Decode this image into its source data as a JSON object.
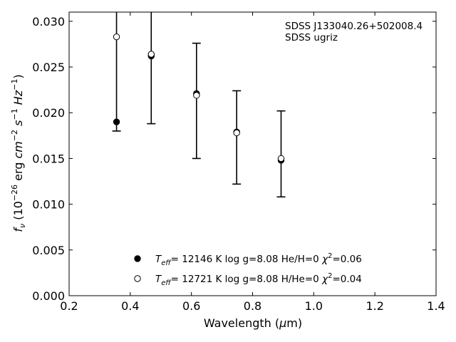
{
  "chart_data": {
    "type": "scatter",
    "xlim": [
      0.2,
      1.4
    ],
    "ylim": [
      0.0,
      0.031
    ],
    "x_ticks": [
      0.2,
      0.4,
      0.6,
      0.8,
      1.0,
      1.2,
      1.4
    ],
    "x_tick_labels": [
      "0.2",
      "0.4",
      "0.6",
      "0.8",
      "1.0",
      "1.2",
      "1.4"
    ],
    "y_ticks": [
      0.0,
      0.005,
      0.01,
      0.015,
      0.02,
      0.025,
      0.03
    ],
    "y_tick_labels": [
      "0.000",
      "0.005",
      "0.010",
      "0.015",
      "0.020",
      "0.025",
      "0.030"
    ],
    "xlabel": "Wavelength (μm)",
    "ylabel": "fν (10⁻²⁶ erg cm⁻² s⁻¹ Hz⁻¹)",
    "annotation": [
      "SDSS J133040.26+502008.4",
      "SDSS ugriz"
    ],
    "observed": {
      "x": [
        0.3551,
        0.4686,
        0.6166,
        0.748,
        0.8932
      ],
      "y": [
        0.0215,
        0.0303,
        0.0213,
        0.0173,
        0.0155
      ],
      "err": [
        0.0035,
        0.0115,
        0.0063,
        0.0051,
        0.0047
      ],
      "clip_top": [
        true,
        true,
        false,
        false,
        false
      ]
    },
    "series": [
      {
        "name": "Teff= 12146 K  log g=8.08  He/H=0  χ²=0.06",
        "marker": "filled",
        "x": [
          0.3551,
          0.4686,
          0.6166,
          0.748,
          0.8932
        ],
        "y": [
          0.019,
          0.0262,
          0.0221,
          0.0179,
          0.0148
        ]
      },
      {
        "name": "Teff= 12721 K  log g=8.08  H/He=0  χ²=0.04",
        "marker": "open",
        "x": [
          0.3551,
          0.4686,
          0.6166,
          0.748,
          0.8932
        ],
        "y": [
          0.0283,
          0.0264,
          0.0219,
          0.0178,
          0.015
        ]
      }
    ],
    "legend_location": "lower center",
    "grid": false
  }
}
